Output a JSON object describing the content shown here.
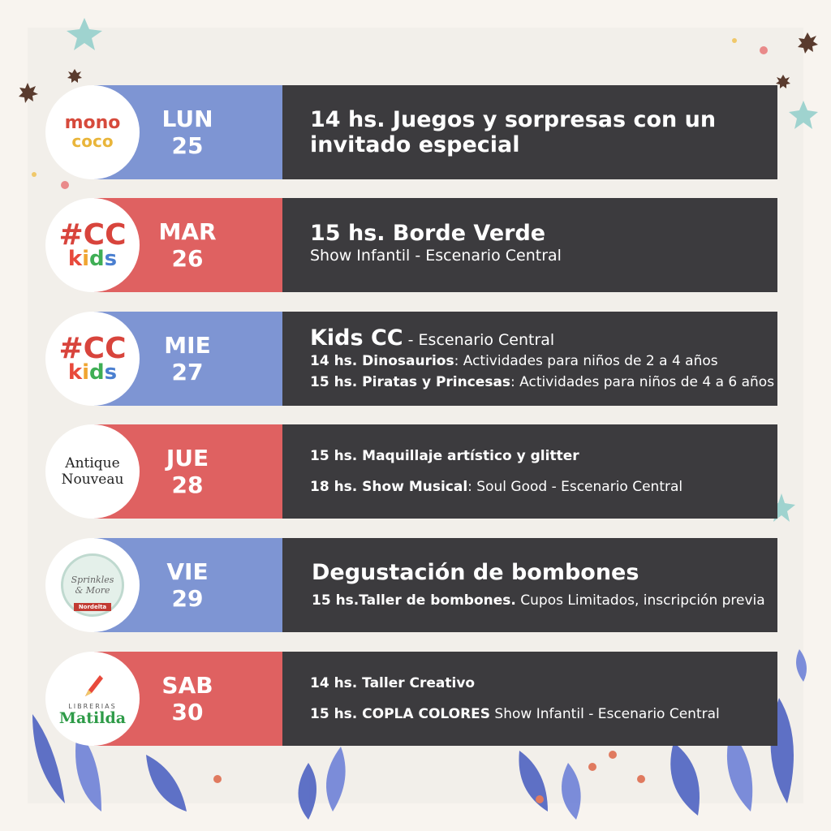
{
  "colors": {
    "blue_band": "#7e95d3",
    "red_band": "#df6161",
    "panel": "#3c3b3e",
    "background": "#f2efea"
  },
  "events": [
    {
      "logo": {
        "name": "monococo-logo",
        "lines": [
          "mono",
          "coco"
        ]
      },
      "weekday": "LUN",
      "day": "25",
      "title": "14 hs. Juegos y sorpresas con un invitado especial"
    },
    {
      "logo": {
        "name": "cc-kids-logo",
        "lines": [
          "#CC",
          "kids"
        ]
      },
      "weekday": "MAR",
      "day": "26",
      "title": "15 hs. Borde Verde",
      "subtitle": "Show Infantil - Escenario Central"
    },
    {
      "logo": {
        "name": "cc-kids-logo",
        "lines": [
          "#CC",
          "kids"
        ]
      },
      "weekday": "MIE",
      "day": "27",
      "title": "Kids CC",
      "title_suffix": " - Escenario Central",
      "items": [
        {
          "bold": "14 hs. Dinosaurios",
          "rest": ": Actividades para niños de 2 a 4 años"
        },
        {
          "bold": "15 hs. Piratas y Princesas",
          "rest": ": Actividades para niños de 4 a 6 años"
        }
      ]
    },
    {
      "logo": {
        "name": "antique-nouveau-logo",
        "lines": [
          "Antique",
          "Nouveau"
        ]
      },
      "weekday": "JUE",
      "day": "28",
      "items": [
        {
          "bold": "15 hs. Maquillaje artístico y glitter",
          "rest": ""
        },
        {
          "bold": "18 hs. Show Musical",
          "rest": ": Soul Good - Escenario Central"
        }
      ]
    },
    {
      "logo": {
        "name": "sprinkles-logo",
        "lines": [
          "Sprinkles",
          "& More",
          "Nordelta"
        ]
      },
      "weekday": "VIE",
      "day": "29",
      "title": "Degustación de bombones",
      "items": [
        {
          "bold": "15 hs.Taller de bombones.",
          "rest": " Cupos Limitados, inscripción previa"
        }
      ]
    },
    {
      "logo": {
        "name": "librerias-matilda-logo",
        "lines": [
          "LIBRERIAS",
          "Matilda"
        ]
      },
      "weekday": "SAB",
      "day": "30",
      "items": [
        {
          "bold": "14 hs. Taller Creativo",
          "rest": ""
        },
        {
          "bold": "15 hs. COPLA COLORES",
          "rest": " Show Infantil - Escenario Central"
        }
      ]
    }
  ]
}
